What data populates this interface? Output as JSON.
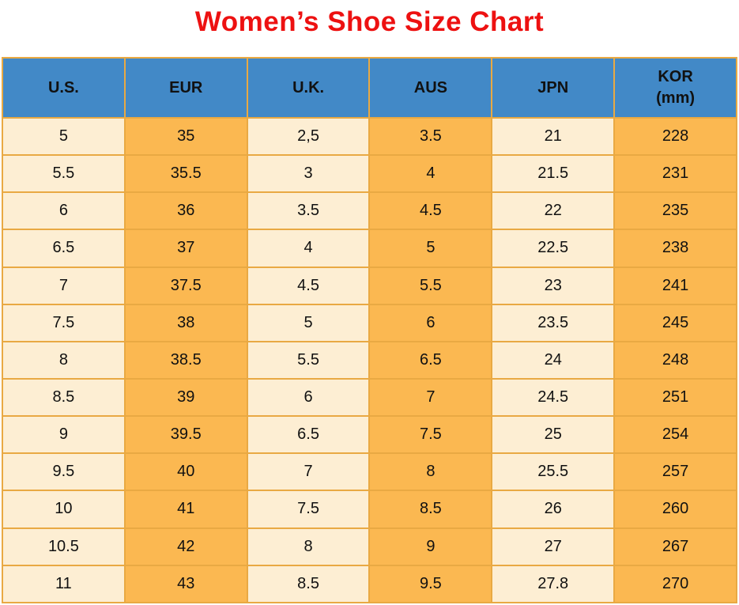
{
  "chart_data": {
    "type": "table",
    "title": "Women’s Shoe Size Chart",
    "columns": [
      {
        "label": "U.S.",
        "sublabel": ""
      },
      {
        "label": "EUR",
        "sublabel": ""
      },
      {
        "label": "U.K.",
        "sublabel": ""
      },
      {
        "label": "AUS",
        "sublabel": ""
      },
      {
        "label": "JPN",
        "sublabel": ""
      },
      {
        "label": "KOR",
        "sublabel": "(mm)"
      }
    ],
    "rows": [
      [
        "5",
        "35",
        "2,5",
        "3.5",
        "21",
        "228"
      ],
      [
        "5.5",
        "35.5",
        "3",
        "4",
        "21.5",
        "231"
      ],
      [
        "6",
        "36",
        "3.5",
        "4.5",
        "22",
        "235"
      ],
      [
        "6.5",
        "37",
        "4",
        "5",
        "22.5",
        "238"
      ],
      [
        "7",
        "37.5",
        "4.5",
        "5.5",
        "23",
        "241"
      ],
      [
        "7.5",
        "38",
        "5",
        "6",
        "23.5",
        "245"
      ],
      [
        "8",
        "38.5",
        "5.5",
        "6.5",
        "24",
        "248"
      ],
      [
        "8.5",
        "39",
        "6",
        "7",
        "24.5",
        "251"
      ],
      [
        "9",
        "39.5",
        "6.5",
        "7.5",
        "25",
        "254"
      ],
      [
        "9.5",
        "40",
        "7",
        "8",
        "25.5",
        "257"
      ],
      [
        "10",
        "41",
        "7.5",
        "8.5",
        "26",
        "260"
      ],
      [
        "10.5",
        "42",
        "8",
        "9",
        "27",
        "267"
      ],
      [
        "11",
        "43",
        "8.5",
        "9.5",
        "27.8",
        "270"
      ]
    ],
    "layout": {
      "column_striping": "alternating light/orange by column",
      "grid": true,
      "legend": "none"
    }
  },
  "colors": {
    "title": "#ed1111",
    "header_bg": "#4289c7",
    "header_text": "#111111",
    "row_light": "#fdeed3",
    "row_orange": "#fbb851",
    "border": "#e9a943",
    "cell_text": "#111111"
  }
}
